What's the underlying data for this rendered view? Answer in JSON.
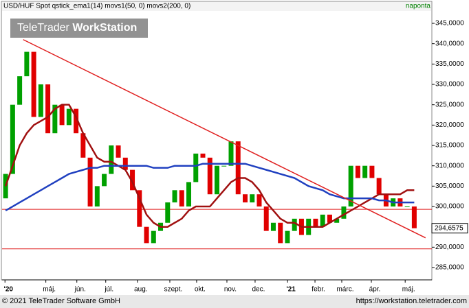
{
  "chart_data": {
    "type": "candlestick",
    "title": "USD/HUF Spot qstick_ema1(14) movs1(50, 0) movs2(200, 0)",
    "period": "naponta",
    "watermark": [
      "TeleTrader",
      "WorkStation"
    ],
    "footer_left": "© 2021 TeleTrader Software GmbH",
    "footer_right": "https://workstation.teletrader.com",
    "up_color": "#00a000",
    "down_color": "#e00000",
    "open": [
      302,
      308,
      325,
      332,
      338,
      322,
      330,
      318,
      325,
      320,
      324,
      318,
      312,
      300,
      305,
      308,
      315,
      312,
      309,
      304,
      295,
      291,
      294,
      296,
      301,
      304,
      300,
      306,
      313,
      312,
      303,
      310,
      310,
      316,
      303,
      301,
      303,
      300,
      294,
      296,
      291,
      294,
      297,
      293,
      297,
      295,
      298,
      296,
      297,
      300,
      310,
      307,
      310,
      307,
      303,
      300,
      302,
      300,
      300
    ],
    "close": [
      308,
      325,
      332,
      338,
      322,
      330,
      318,
      325,
      320,
      324,
      318,
      312,
      300,
      305,
      308,
      315,
      312,
      309,
      304,
      295,
      291,
      294,
      296,
      301,
      304,
      300,
      306,
      313,
      312,
      303,
      310,
      310,
      316,
      303,
      301,
      303,
      300,
      294,
      296,
      291,
      294,
      297,
      293,
      297,
      295,
      298,
      296,
      297,
      300,
      310,
      307,
      310,
      307,
      303,
      300,
      302,
      300,
      300,
      294.6575
    ],
    "last_value_label": "294,6575",
    "series": [
      {
        "name": "movs1(50, 0)",
        "color": "#a01010",
        "values": [
          305,
          310,
          315,
          318,
          320,
          321,
          322,
          324,
          325,
          325,
          322,
          318,
          315,
          312,
          311,
          311,
          310,
          309,
          306,
          302,
          298,
          296,
          295,
          295,
          296,
          297,
          299,
          300,
          300,
          300,
          302,
          304,
          306,
          307,
          307,
          306,
          304,
          301,
          299,
          297,
          296,
          296,
          295,
          295,
          295,
          295,
          296,
          297,
          298,
          299,
          300,
          301,
          302,
          303,
          303,
          303,
          303,
          304,
          304
        ]
      },
      {
        "name": "movs2(200, 0)",
        "color": "#2040c0",
        "values": [
          299,
          300,
          301,
          302,
          303,
          304,
          305,
          306,
          307,
          308,
          308.5,
          309,
          309.5,
          309.5,
          310,
          310,
          310,
          310,
          310,
          310,
          310,
          309.5,
          309.5,
          309.5,
          310,
          310,
          310,
          310,
          310.5,
          310.5,
          310.5,
          310.5,
          310.5,
          310.5,
          310.5,
          310,
          309.5,
          309,
          308.5,
          308,
          307.5,
          307,
          306,
          305,
          304.5,
          304,
          303,
          302.5,
          302,
          302,
          302,
          302,
          302,
          301.5,
          301.5,
          301,
          301,
          301,
          301
        ]
      }
    ],
    "trendlines": [
      {
        "x": [
          3,
          60.1
        ],
        "y": [
          341,
          292.3
        ]
      }
    ],
    "hlines": [
      299.3,
      289.6
    ],
    "xlim": [
      0,
      61
    ],
    "ylim": [
      281.97,
      347.7
    ],
    "xticks": [
      {
        "value": 0.9,
        "label": "'20"
      },
      {
        "value": 6.7,
        "label": "máj."
      },
      {
        "value": 11.1,
        "label": "jún."
      },
      {
        "value": 15.2,
        "label": "júl."
      },
      {
        "value": 19.7,
        "label": "aug."
      },
      {
        "value": 24.3,
        "label": "szept."
      },
      {
        "value": 28.1,
        "label": "okt."
      },
      {
        "value": 32.4,
        "label": "nov."
      },
      {
        "value": 36.4,
        "label": "dec."
      },
      {
        "value": 41.0,
        "label": "'21"
      },
      {
        "value": 44.9,
        "label": "febr."
      },
      {
        "value": 48.7,
        "label": "márc."
      },
      {
        "value": 52.9,
        "label": "ápr."
      },
      {
        "value": 57.7,
        "label": "máj."
      }
    ],
    "yticks": [
      {
        "value": 285,
        "label": "285,0000"
      },
      {
        "value": 290,
        "label": "290,0000"
      },
      {
        "value": 295,
        "label": "295,0000"
      },
      {
        "value": 300,
        "label": "300,0000"
      },
      {
        "value": 305,
        "label": "305,0000"
      },
      {
        "value": 310,
        "label": "310,0000"
      },
      {
        "value": 315,
        "label": "315,0000"
      },
      {
        "value": 320,
        "label": "320,0000"
      },
      {
        "value": 325,
        "label": "325,0000"
      },
      {
        "value": 330,
        "label": "330,0000"
      },
      {
        "value": 335,
        "label": "335,0000"
      },
      {
        "value": 340,
        "label": "340,0000"
      },
      {
        "value": 345,
        "label": "345,0000"
      }
    ]
  }
}
